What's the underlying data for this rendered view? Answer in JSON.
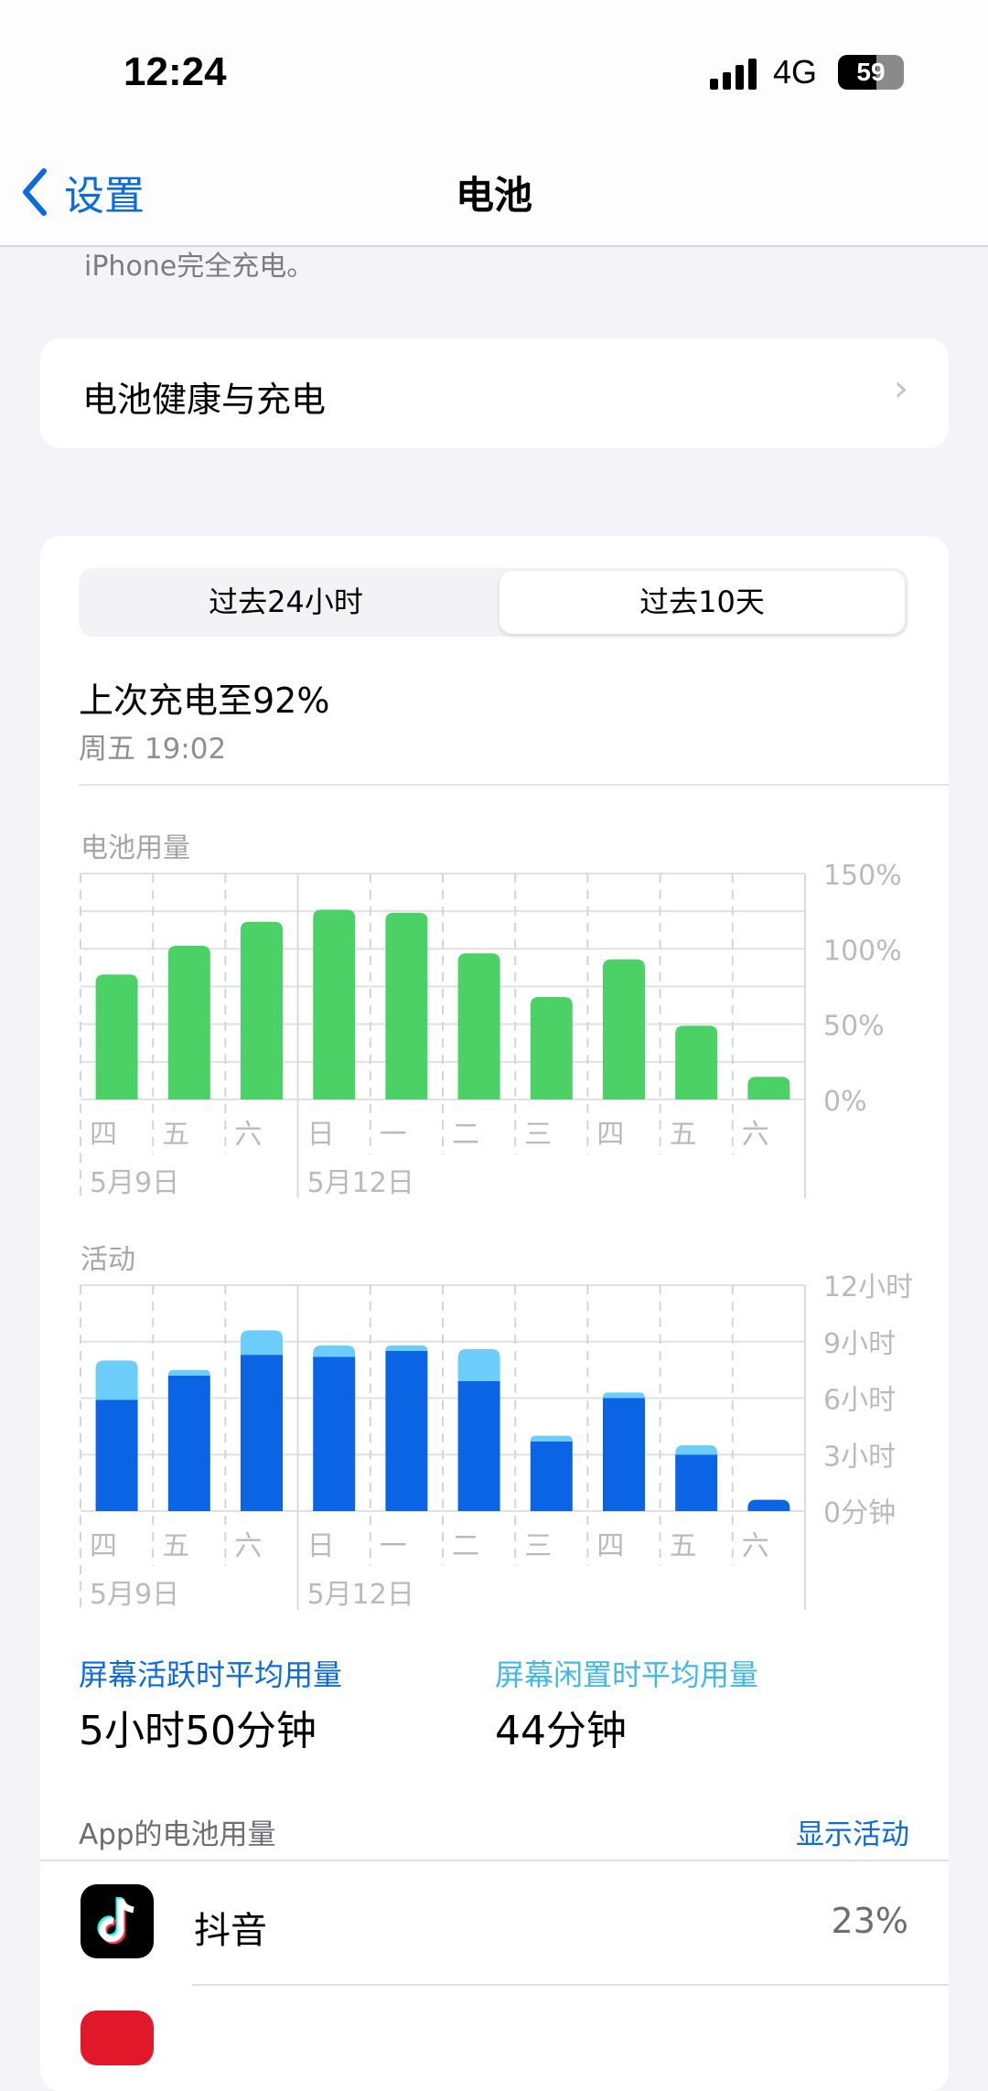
{
  "status_bar": {
    "time": "12:24",
    "network": "4G",
    "battery": "59",
    "battery_level_percent": 59
  },
  "nav": {
    "back_label": "设置",
    "title": "电池",
    "back_icon": "chevron-left-icon"
  },
  "note_text": "iPhone完全充电。",
  "health_row": {
    "label": "电池健康与充电",
    "icon": "chevron-right-icon"
  },
  "segmented": {
    "options": [
      "过去24小时",
      "过去10天"
    ],
    "selected": "过去10天"
  },
  "last_charge": {
    "title": "上次充电至92%",
    "time": "周五 19:02"
  },
  "colors": {
    "accent": "#0a6be0",
    "battery_bar": "#4cd167",
    "screen_on": "#0a64e4",
    "screen_off": "#6ccdfb",
    "screen_off_text": "#40b8e8"
  },
  "chart_data": [
    {
      "type": "bar",
      "title": "电池用量",
      "categories": [
        "四",
        "五",
        "六",
        "日",
        "一",
        "二",
        "三",
        "四",
        "五",
        "六"
      ],
      "date_labels": [
        "5月9日",
        "5月12日"
      ],
      "values": [
        83,
        102,
        118,
        126,
        124,
        97,
        68,
        93,
        49,
        15
      ],
      "yticks": [
        "0%",
        "50%",
        "100%",
        "150%"
      ],
      "ylim": [
        0,
        150
      ],
      "grid": true
    },
    {
      "type": "bar",
      "stacked": true,
      "title": "活动",
      "categories": [
        "四",
        "五",
        "六",
        "日",
        "一",
        "二",
        "三",
        "四",
        "五",
        "六"
      ],
      "date_labels": [
        "5月9日",
        "5月12日"
      ],
      "series": [
        {
          "values": [
            5.9,
            7.2,
            8.3,
            8.2,
            8.5,
            6.9,
            3.7,
            6.0,
            3.0,
            0.6
          ]
        },
        {
          "values": [
            2.1,
            0.3,
            1.3,
            0.6,
            0.3,
            1.7,
            0.3,
            0.3,
            0.5,
            0.0
          ]
        }
      ],
      "yticks": [
        "0分钟",
        "3小时",
        "6小时",
        "9小时",
        "12小时"
      ],
      "ylim": [
        0,
        12
      ],
      "grid": true
    }
  ],
  "stats": {
    "screen_on_label": "屏幕活跃时平均用量",
    "screen_on_value": "5小时50分钟",
    "screen_off_label": "屏幕闲置时平均用量",
    "screen_off_value": "44分钟"
  },
  "apps_section": {
    "label": "App的电池用量",
    "action": "显示活动"
  },
  "apps": [
    {
      "name": "抖音",
      "percent": "23%",
      "icon": "douyin-icon"
    }
  ]
}
